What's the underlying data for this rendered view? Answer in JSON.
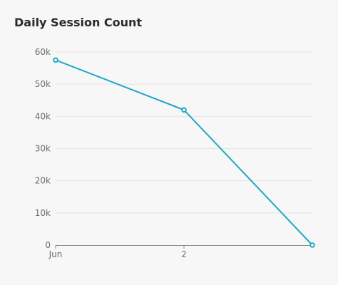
{
  "chart_data": {
    "type": "line",
    "title": "Daily Session Count",
    "xlabel": "",
    "ylabel": "",
    "x_ticks": [
      "Jun",
      "2"
    ],
    "y_ticks": [
      "0",
      "10k",
      "20k",
      "30k",
      "40k",
      "50k",
      "60k"
    ],
    "ylim": [
      0,
      60000
    ],
    "grid": true,
    "legend": "none",
    "color": "#1ea8c7",
    "x": [
      "Jun 1",
      "Jun 2",
      "Jun 3"
    ],
    "series": [
      {
        "values": [
          57500,
          42000,
          0
        ]
      }
    ]
  }
}
